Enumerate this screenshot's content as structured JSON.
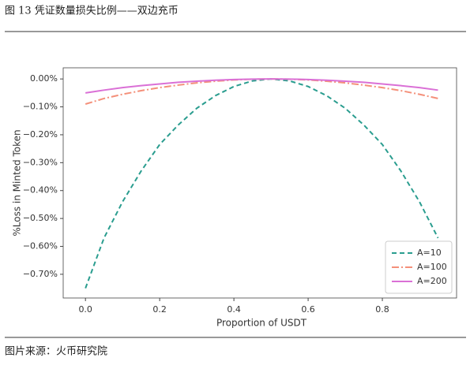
{
  "header": {
    "title": "图 13  凭证数量损失比例——双边充币"
  },
  "footer": {
    "source": "图片来源：火币研究院"
  },
  "chart_data": {
    "type": "line",
    "xlabel": "Proportion of USDT",
    "ylabel": "%Loss in Minted Token",
    "x": [
      0,
      0.05,
      0.1,
      0.15,
      0.2,
      0.25,
      0.3,
      0.35,
      0.4,
      0.45,
      0.5,
      0.55,
      0.6,
      0.65,
      0.7,
      0.75,
      0.8,
      0.85,
      0.9,
      0.95
    ],
    "series": [
      {
        "name": "A=10",
        "color": "#2a9d8f",
        "dash": "6,4",
        "values": [
          -0.75,
          -0.57,
          -0.44,
          -0.33,
          -0.235,
          -0.165,
          -0.105,
          -0.06,
          -0.027,
          -0.007,
          0,
          -0.007,
          -0.027,
          -0.06,
          -0.105,
          -0.165,
          -0.235,
          -0.33,
          -0.44,
          -0.57
        ]
      },
      {
        "name": "A=100",
        "color": "#f4907a",
        "dash": "9,3,2,3",
        "values": [
          -0.09,
          -0.07,
          -0.055,
          -0.042,
          -0.031,
          -0.022,
          -0.014,
          -0.008,
          -0.0035,
          -0.001,
          0,
          -0.001,
          -0.0035,
          -0.008,
          -0.014,
          -0.022,
          -0.031,
          -0.042,
          -0.055,
          -0.07
        ]
      },
      {
        "name": "A=200",
        "color": "#da70d6",
        "dash": "none",
        "values": [
          -0.05,
          -0.04,
          -0.031,
          -0.024,
          -0.018,
          -0.012,
          -0.008,
          -0.0045,
          -0.002,
          -0.0005,
          0,
          -0.0005,
          -0.002,
          -0.0045,
          -0.008,
          -0.012,
          -0.018,
          -0.024,
          -0.031,
          -0.04
        ]
      }
    ],
    "xlim": [
      -0.06,
      1.0
    ],
    "ylim": [
      -0.785,
      0.04
    ],
    "xticks": [
      {
        "value": 0,
        "label": "0.0"
      },
      0.2,
      0.4,
      0.6,
      0.8
    ],
    "yticks": [
      {
        "value": 0,
        "label": "0.00%"
      },
      {
        "value": -0.1,
        "label": "−0.10%"
      },
      {
        "value": -0.2,
        "label": "−0.20%"
      },
      {
        "value": -0.3,
        "label": "−0.30%"
      },
      {
        "value": -0.4,
        "label": "−0.40%"
      },
      {
        "value": -0.5,
        "label": "−0.50%"
      },
      {
        "value": -0.6,
        "label": "−0.60%"
      },
      {
        "value": -0.7,
        "label": "−0.70%"
      }
    ],
    "legend": "lower right"
  }
}
